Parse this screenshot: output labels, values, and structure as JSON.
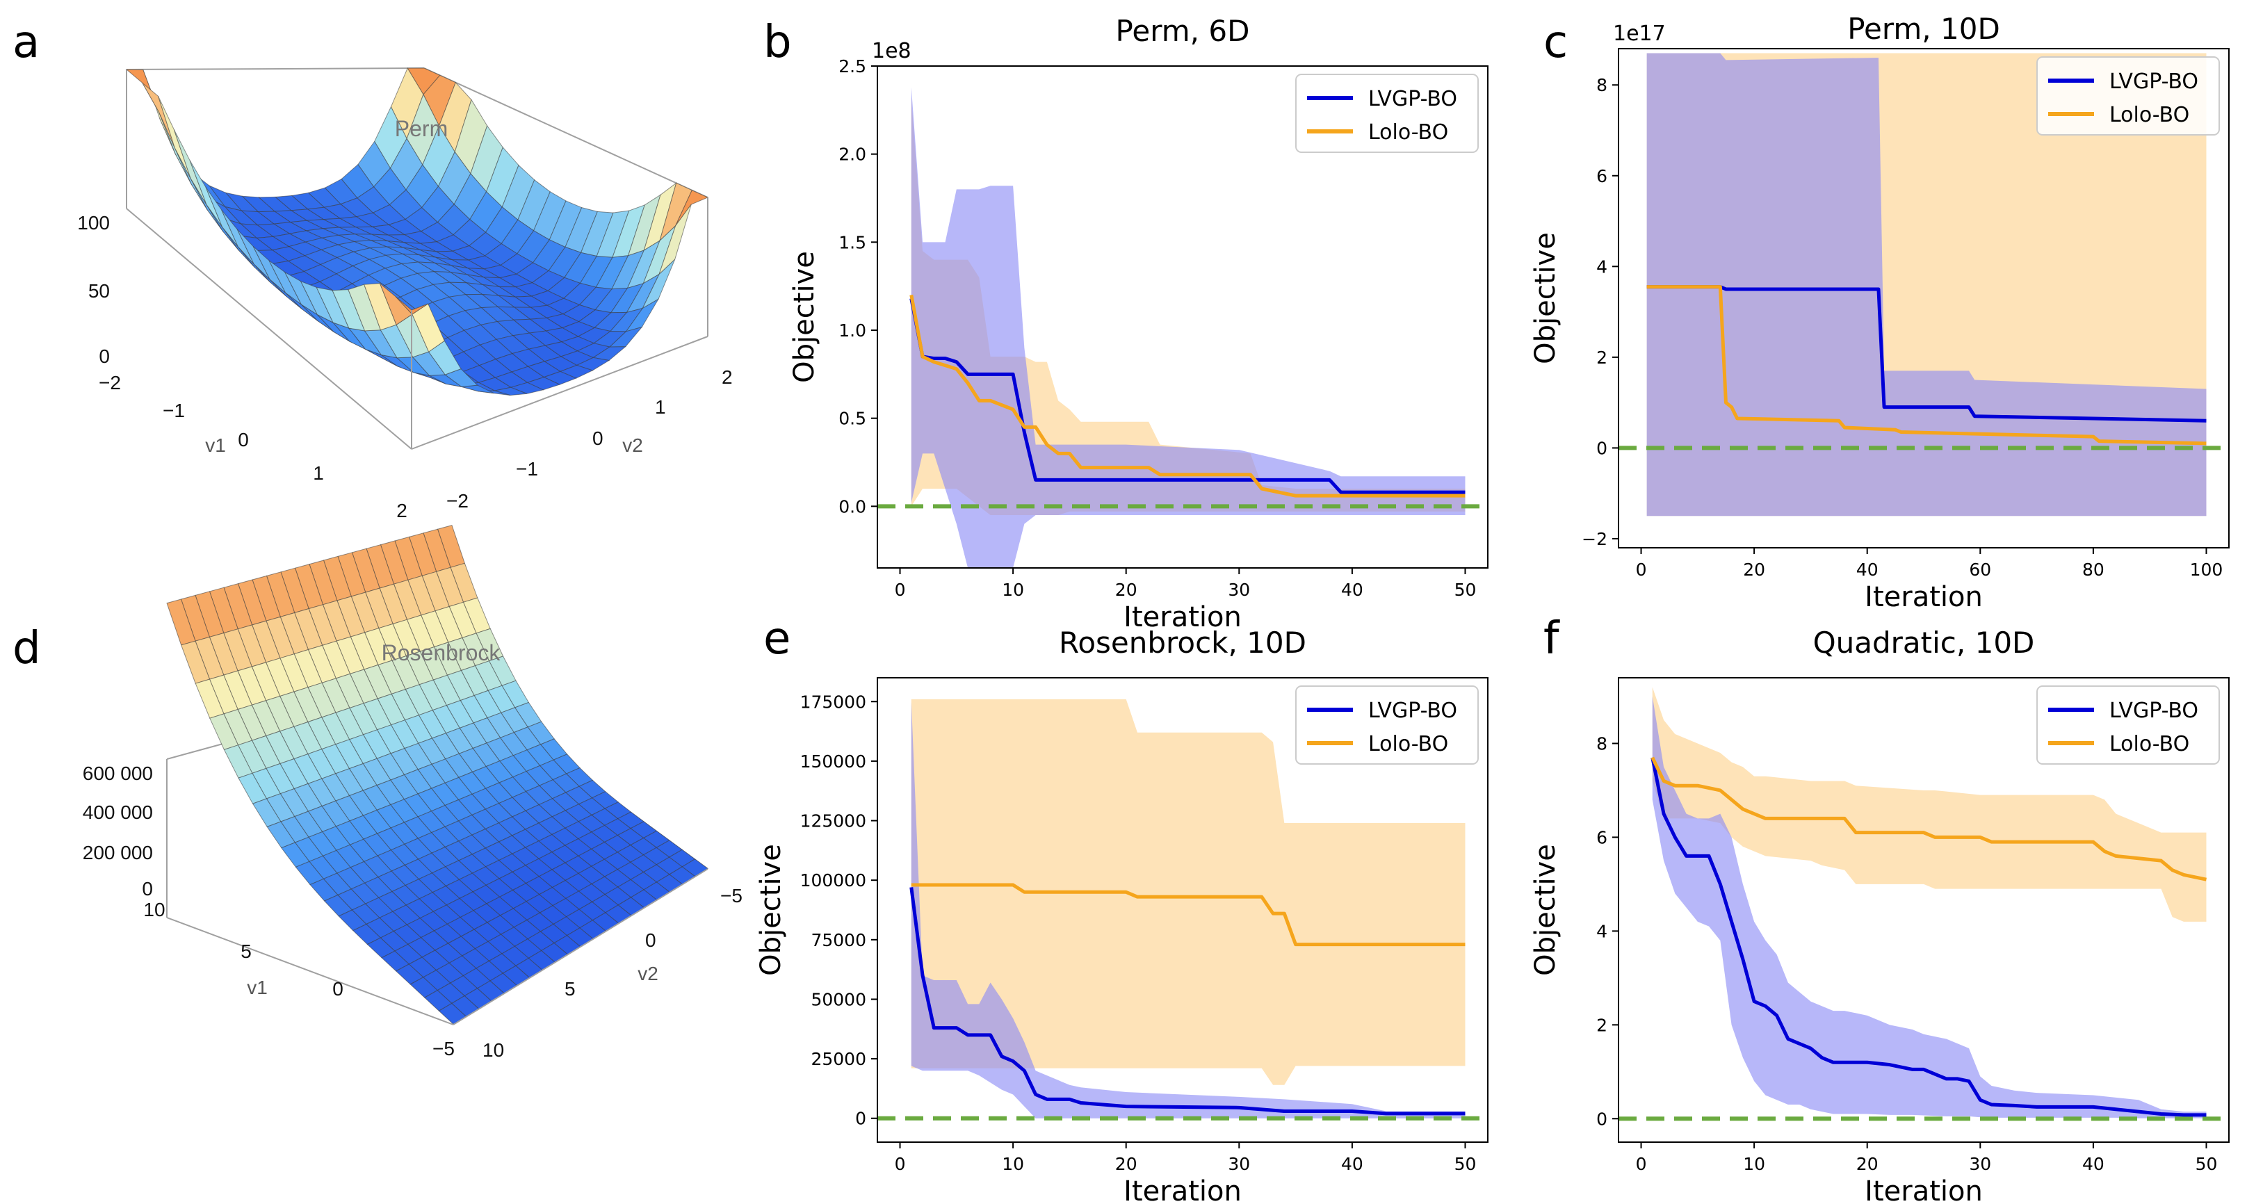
{
  "colors": {
    "lvgp": "#0000d6",
    "lolo": "#f5a51c",
    "target": "#6aaa3f",
    "lvgp_band": "#8a8af5",
    "lolo_band": "#fdd79a",
    "overlap": "#b9a0b0"
  },
  "panels": {
    "a": {
      "letter": "a"
    },
    "b": {
      "letter": "b"
    },
    "c": {
      "letter": "c"
    },
    "d": {
      "letter": "d"
    },
    "e": {
      "letter": "e"
    },
    "f": {
      "letter": "f"
    }
  },
  "surfaces": [
    {
      "title": "Perm",
      "z_ticks": [
        "100",
        "50",
        "0"
      ],
      "v1_label": "v1",
      "v2_label": "v2",
      "v1_ticks": [
        "−2",
        "−1",
        "0",
        "1",
        "2"
      ],
      "v2_ticks": [
        "2",
        "1",
        "0",
        "−1",
        "−2"
      ]
    },
    {
      "title": "Rosenbrock",
      "z_ticks": [
        "600 000",
        "400 000",
        "200 000",
        "0"
      ],
      "v1_label": "v1",
      "v2_label": "v2",
      "v1_ticks": [
        "10",
        "5",
        "0",
        "−5"
      ],
      "v2_ticks": [
        "−5",
        "0",
        "5",
        "10"
      ]
    }
  ],
  "chart_data": [
    {
      "panel": "b",
      "type": "line",
      "title": "Perm, 6D",
      "xlabel": "Iteration",
      "ylabel": "Objective",
      "xlim": [
        -2,
        52
      ],
      "ylim": [
        -0.35,
        2.5
      ],
      "offset_text": "1e8",
      "xticks": [
        0,
        10,
        20,
        30,
        40,
        50
      ],
      "xtick_labels": [
        "0",
        "10",
        "20",
        "30",
        "40",
        "50"
      ],
      "yticks": [
        0,
        0.5,
        1.0,
        1.5,
        2.0,
        2.5
      ],
      "ytick_labels": [
        "0.0",
        "0.5",
        "1.0",
        "1.5",
        "2.0",
        "2.5"
      ],
      "target_line": 0,
      "legend": [
        "LVGP-BO",
        "Lolo-BO"
      ],
      "legend_position": "top-right",
      "series": [
        {
          "name": "LVGP-BO",
          "x": [
            1,
            2,
            3,
            4,
            5,
            6,
            7,
            8,
            9,
            10,
            11,
            12,
            20,
            30,
            38,
            39,
            50
          ],
          "values": [
            1.18,
            0.85,
            0.84,
            0.84,
            0.82,
            0.75,
            0.75,
            0.75,
            0.75,
            0.75,
            0.42,
            0.15,
            0.15,
            0.15,
            0.15,
            0.08,
            0.08
          ],
          "lower": [
            0.02,
            0.3,
            0.3,
            0.1,
            -0.1,
            -0.35,
            -0.35,
            -0.35,
            -0.35,
            -0.35,
            -0.1,
            -0.05,
            -0.05,
            -0.05,
            -0.05,
            -0.05,
            -0.05
          ],
          "upper": [
            2.38,
            1.5,
            1.5,
            1.5,
            1.8,
            1.8,
            1.8,
            1.82,
            1.82,
            1.82,
            0.9,
            0.35,
            0.35,
            0.32,
            0.2,
            0.17,
            0.17
          ]
        },
        {
          "name": "Lolo-BO",
          "x": [
            1,
            2,
            3,
            4,
            5,
            6,
            7,
            8,
            10,
            11,
            12,
            13,
            14,
            15,
            16,
            22,
            23,
            31,
            32,
            35,
            50
          ],
          "values": [
            1.2,
            0.85,
            0.82,
            0.8,
            0.78,
            0.7,
            0.6,
            0.6,
            0.55,
            0.45,
            0.45,
            0.35,
            0.3,
            0.3,
            0.22,
            0.22,
            0.18,
            0.18,
            0.1,
            0.06,
            0.06
          ],
          "lower": [
            0.0,
            0.1,
            0.1,
            0.1,
            0.1,
            0.05,
            0.0,
            -0.05,
            -0.05,
            -0.05,
            -0.05,
            -0.05,
            -0.05,
            -0.03,
            -0.03,
            -0.03,
            -0.03,
            -0.03,
            -0.03,
            -0.03,
            -0.03
          ],
          "upper": [
            2.32,
            1.45,
            1.4,
            1.4,
            1.4,
            1.4,
            1.3,
            0.85,
            0.85,
            0.85,
            0.82,
            0.82,
            0.6,
            0.55,
            0.48,
            0.48,
            0.35,
            0.3,
            0.12,
            0.1,
            0.1
          ]
        }
      ]
    },
    {
      "panel": "c",
      "type": "line",
      "title": "Perm, 10D",
      "xlabel": "Iteration",
      "ylabel": "Objective",
      "xlim": [
        -4,
        104
      ],
      "ylim": [
        -2.2,
        8.8
      ],
      "offset_text": "1e17",
      "xticks": [
        0,
        20,
        40,
        60,
        80,
        100
      ],
      "xtick_labels": [
        "0",
        "20",
        "40",
        "60",
        "80",
        "100"
      ],
      "yticks": [
        -2,
        0,
        2,
        4,
        6,
        8
      ],
      "ytick_labels": [
        "−2",
        "0",
        "2",
        "4",
        "6",
        "8"
      ],
      "target_line": 0,
      "legend": [
        "LVGP-BO",
        "Lolo-BO"
      ],
      "legend_position": "top-right",
      "series": [
        {
          "name": "LVGP-BO",
          "x": [
            1,
            14,
            15,
            42,
            43,
            58,
            59,
            100
          ],
          "values": [
            3.55,
            3.55,
            3.5,
            3.5,
            0.9,
            0.9,
            0.7,
            0.6
          ],
          "lower": [
            -1.5,
            -1.5,
            -1.5,
            -1.5,
            -1.5,
            -1.5,
            -1.5,
            -1.5
          ],
          "upper": [
            8.7,
            8.7,
            8.55,
            8.6,
            1.7,
            1.7,
            1.5,
            1.3
          ]
        },
        {
          "name": "Lolo-BO",
          "x": [
            1,
            14,
            15,
            16,
            17,
            35,
            36,
            45,
            46,
            80,
            81,
            100
          ],
          "values": [
            3.55,
            3.55,
            1.0,
            0.9,
            0.65,
            0.6,
            0.45,
            0.4,
            0.35,
            0.25,
            0.15,
            0.1
          ],
          "lower": [
            -1.5,
            -1.5,
            -1.5,
            -1.5,
            -1.5,
            -1.5,
            -1.5,
            -1.5,
            -1.5,
            -1.5,
            -1.5,
            -1.5
          ],
          "upper": [
            8.7,
            8.7,
            8.7,
            8.7,
            8.7,
            8.7,
            8.7,
            8.7,
            8.7,
            8.7,
            8.7,
            8.7
          ]
        }
      ]
    },
    {
      "panel": "e",
      "type": "line",
      "title": "Rosenbrock, 10D",
      "xlabel": "Iteration",
      "ylabel": "Objective",
      "xlim": [
        -2,
        52
      ],
      "ylim": [
        -10000,
        185000
      ],
      "xticks": [
        0,
        10,
        20,
        30,
        40,
        50
      ],
      "xtick_labels": [
        "0",
        "10",
        "20",
        "30",
        "40",
        "50"
      ],
      "yticks": [
        0,
        25000,
        50000,
        75000,
        100000,
        125000,
        150000,
        175000
      ],
      "ytick_labels": [
        "0",
        "25000",
        "50000",
        "75000",
        "100000",
        "125000",
        "150000",
        "175000"
      ],
      "target_line": 0,
      "legend": [
        "LVGP-BO",
        "Lolo-BO"
      ],
      "legend_position": "top-right",
      "series": [
        {
          "name": "LVGP-BO",
          "x": [
            1,
            2,
            3,
            4,
            5,
            6,
            7,
            8,
            9,
            10,
            11,
            12,
            13,
            14,
            15,
            16,
            20,
            30,
            34,
            40,
            43,
            50
          ],
          "values": [
            97000,
            60000,
            38000,
            38000,
            38000,
            35000,
            35000,
            35000,
            26000,
            24000,
            20000,
            10000,
            8000,
            8000,
            8000,
            6500,
            5000,
            4500,
            3000,
            3000,
            2000,
            2000
          ],
          "lower": [
            22000,
            20000,
            20000,
            20000,
            20000,
            20000,
            18000,
            15000,
            12000,
            10000,
            5000,
            0,
            0,
            0,
            0,
            0,
            0,
            0,
            0,
            0,
            0,
            0
          ],
          "upper": [
            175000,
            60000,
            58000,
            58000,
            58000,
            48000,
            48000,
            57000,
            50000,
            42000,
            32000,
            20000,
            18000,
            16000,
            14000,
            13000,
            11000,
            9000,
            8000,
            6000,
            3000,
            3000
          ]
        },
        {
          "name": "Lolo-BO",
          "x": [
            1,
            10,
            11,
            20,
            21,
            32,
            33,
            34,
            35,
            50
          ],
          "values": [
            98000,
            98000,
            95000,
            95000,
            93000,
            93000,
            86000,
            86000,
            73000,
            73000
          ],
          "lower": [
            21000,
            21000,
            21000,
            21000,
            21000,
            21000,
            14000,
            14000,
            22000,
            22000
          ],
          "upper": [
            176000,
            176000,
            176000,
            176000,
            162000,
            162000,
            158000,
            124000,
            124000,
            124000
          ]
        }
      ]
    },
    {
      "panel": "f",
      "type": "line",
      "title": "Quadratic, 10D",
      "xlabel": "Iteration",
      "ylabel": "Objective",
      "xlim": [
        -2,
        52
      ],
      "ylim": [
        -0.5,
        9.4
      ],
      "xticks": [
        0,
        10,
        20,
        30,
        40,
        50
      ],
      "xtick_labels": [
        "0",
        "10",
        "20",
        "30",
        "40",
        "50"
      ],
      "yticks": [
        0,
        2,
        4,
        6,
        8
      ],
      "ytick_labels": [
        "0",
        "2",
        "4",
        "6",
        "8"
      ],
      "target_line": 0,
      "legend": [
        "LVGP-BO",
        "Lolo-BO"
      ],
      "legend_position": "top-right",
      "series": [
        {
          "name": "LVGP-BO",
          "x": [
            1,
            2,
            3,
            4,
            5,
            6,
            7,
            8,
            9,
            10,
            11,
            12,
            13,
            14,
            15,
            16,
            17,
            18,
            20,
            22,
            24,
            25,
            27,
            28,
            29,
            30,
            31,
            33,
            35,
            40,
            42,
            44,
            46,
            48,
            50
          ],
          "values": [
            7.7,
            6.5,
            6.0,
            5.6,
            5.6,
            5.6,
            5.0,
            4.2,
            3.4,
            2.5,
            2.4,
            2.2,
            1.7,
            1.6,
            1.5,
            1.3,
            1.2,
            1.2,
            1.2,
            1.15,
            1.05,
            1.05,
            0.85,
            0.85,
            0.8,
            0.4,
            0.3,
            0.28,
            0.25,
            0.25,
            0.2,
            0.15,
            0.1,
            0.08,
            0.08
          ],
          "lower": [
            6.8,
            5.5,
            4.8,
            4.5,
            4.2,
            4.1,
            3.8,
            2.0,
            1.3,
            0.8,
            0.5,
            0.4,
            0.3,
            0.3,
            0.2,
            0.15,
            0.1,
            0.1,
            0.1,
            0.08,
            0.08,
            0.07,
            0.05,
            0.05,
            0.05,
            0.03,
            0.02,
            0.02,
            0.02,
            0.02,
            0.02,
            0.01,
            0.01,
            0.01,
            0.01
          ],
          "upper": [
            9.0,
            7.5,
            7.0,
            6.5,
            6.4,
            6.4,
            6.5,
            6.0,
            5.0,
            4.2,
            3.8,
            3.5,
            2.9,
            2.7,
            2.5,
            2.4,
            2.3,
            2.3,
            2.2,
            2.0,
            1.9,
            1.8,
            1.7,
            1.6,
            1.5,
            0.9,
            0.7,
            0.6,
            0.55,
            0.5,
            0.45,
            0.4,
            0.2,
            0.15,
            0.15
          ]
        },
        {
          "name": "Lolo-BO",
          "x": [
            1,
            2,
            3,
            5,
            7,
            8,
            9,
            10,
            11,
            15,
            16,
            18,
            19,
            25,
            26,
            30,
            31,
            35,
            38,
            40,
            41,
            42,
            44,
            46,
            47,
            48,
            50
          ],
          "values": [
            7.7,
            7.2,
            7.1,
            7.1,
            7.0,
            6.8,
            6.6,
            6.5,
            6.4,
            6.4,
            6.4,
            6.4,
            6.1,
            6.1,
            6.0,
            6.0,
            5.9,
            5.9,
            5.9,
            5.9,
            5.7,
            5.6,
            5.55,
            5.5,
            5.3,
            5.2,
            5.1
          ],
          "lower": [
            7.2,
            6.4,
            6.4,
            6.4,
            6.3,
            6.0,
            5.8,
            5.7,
            5.6,
            5.5,
            5.4,
            5.3,
            5.0,
            5.0,
            4.9,
            4.9,
            4.9,
            4.9,
            4.9,
            4.9,
            4.9,
            4.9,
            4.9,
            4.9,
            4.3,
            4.2,
            4.2
          ],
          "upper": [
            9.2,
            8.5,
            8.2,
            8.0,
            7.8,
            7.6,
            7.5,
            7.3,
            7.3,
            7.2,
            7.2,
            7.2,
            7.1,
            7.0,
            7.0,
            6.9,
            6.9,
            6.9,
            6.9,
            6.9,
            6.8,
            6.5,
            6.3,
            6.1,
            6.1,
            6.1,
            6.1
          ]
        }
      ]
    }
  ]
}
